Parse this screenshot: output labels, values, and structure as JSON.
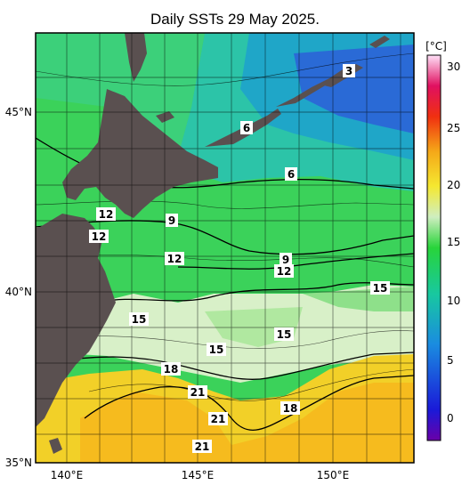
{
  "title": "Daily SSTs 29 May 2025.",
  "colorbar": {
    "unit": "[°C]",
    "ticks": [
      "30",
      "25",
      "20",
      "15",
      "10",
      "5",
      "0"
    ]
  },
  "lat_labels": [
    "45°N",
    "40°N",
    "35°N"
  ],
  "lon_labels": [
    "140°E",
    "145°E",
    "150°E"
  ],
  "contour_labels": {
    "c3": "3",
    "c6a": "6",
    "c6b": "6",
    "c9a": "9",
    "c9b": "9",
    "c12a": "12",
    "c12b": "12",
    "c12c": "12",
    "c12d": "12",
    "c15a": "15",
    "c15b": "15",
    "c15c": "15",
    "c15d": "15",
    "c18a": "18",
    "c18b": "18",
    "c21a": "21",
    "c21b": "21",
    "c21c": "21"
  },
  "colors": {
    "land": "#5a5050",
    "cold": "#2a5fd0",
    "cool": "#22b7b0",
    "mid": "#39d24a",
    "mild": "#cfeec0",
    "warm": "#f0c818",
    "hot": "#f7b020"
  }
}
